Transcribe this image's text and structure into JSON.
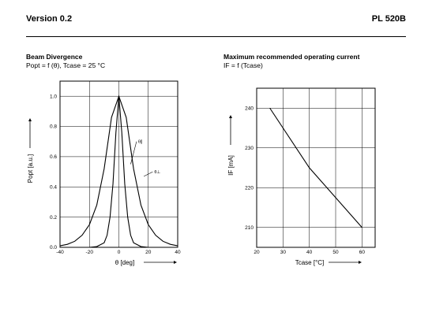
{
  "header": {
    "left": "Version 0.2",
    "right": "PL 520B"
  },
  "chart_data": [
    {
      "type": "line",
      "title": "Beam Divergence",
      "subtitle": "Popt = f (θ), Tcase = 25 °C",
      "xlabel": "θ [deg]",
      "ylabel": "Popt [a.u.]",
      "xlim": [
        -40,
        40
      ],
      "ylim": [
        0,
        1.1
      ],
      "xticks": [
        -40,
        -20,
        0,
        20,
        40
      ],
      "yticks": [
        0.0,
        0.2,
        0.4,
        0.6,
        0.8,
        1.0
      ],
      "grid": true,
      "series": [
        {
          "name": "θ∥",
          "x": [
            -40,
            -20,
            -15,
            -10,
            -8,
            -6,
            -4,
            -2,
            0,
            2,
            4,
            6,
            8,
            10,
            15,
            20,
            40
          ],
          "y": [
            0.0,
            0.0,
            0.005,
            0.03,
            0.08,
            0.2,
            0.42,
            0.76,
            1.0,
            0.76,
            0.42,
            0.2,
            0.08,
            0.03,
            0.005,
            0.0,
            0.0
          ]
        },
        {
          "name": "θ⊥",
          "x": [
            -40,
            -35,
            -30,
            -25,
            -20,
            -15,
            -10,
            -5,
            0,
            5,
            10,
            15,
            20,
            25,
            30,
            35,
            40
          ],
          "y": [
            0.01,
            0.02,
            0.04,
            0.08,
            0.15,
            0.28,
            0.52,
            0.86,
            1.0,
            0.86,
            0.52,
            0.28,
            0.15,
            0.08,
            0.04,
            0.02,
            0.01
          ]
        }
      ]
    },
    {
      "type": "line",
      "title": "Maximum recommended operating current",
      "subtitle": "IF = f (Tcase)",
      "xlabel": "Tcase [°C]",
      "ylabel": "IF [mA]",
      "xlim": [
        20,
        65
      ],
      "ylim": [
        205,
        245
      ],
      "xticks": [
        20,
        30,
        40,
        50,
        60
      ],
      "yticks": [
        210,
        220,
        230,
        240
      ],
      "grid": true,
      "series": [
        {
          "x": [
            25,
            40,
            60
          ],
          "y": [
            240,
            225,
            210
          ]
        }
      ]
    }
  ]
}
